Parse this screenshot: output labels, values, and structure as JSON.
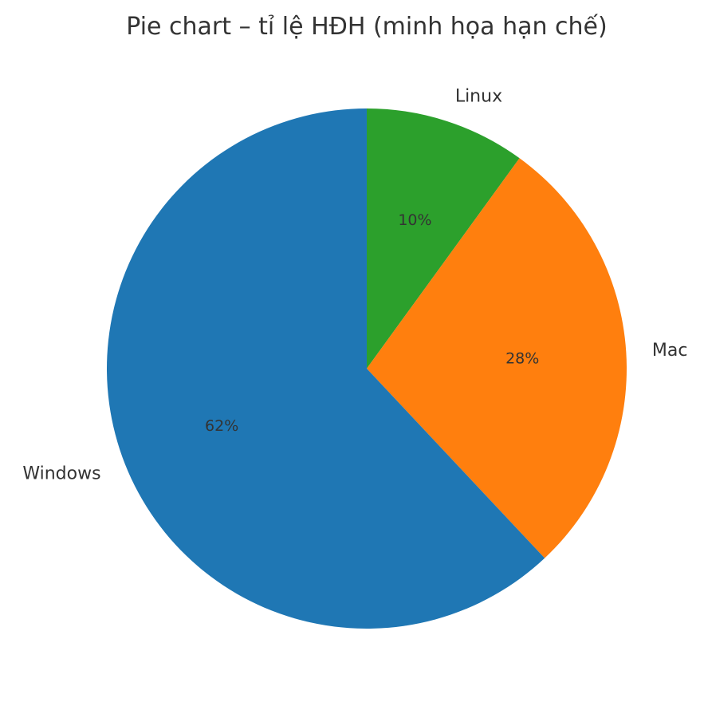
{
  "chart_data": {
    "type": "pie",
    "title": "Pie chart – tỉ lệ HĐH (minh họa hạn chế)",
    "categories": [
      "Linux",
      "Mac",
      "Windows"
    ],
    "values": [
      10,
      28,
      62
    ],
    "value_labels": [
      "10%",
      "28%",
      "62%"
    ],
    "colors": [
      "#2ca02c",
      "#ff7f0e",
      "#1f77b4"
    ],
    "start_angle_deg": 90,
    "direction": "clockwise",
    "legend": "none"
  }
}
